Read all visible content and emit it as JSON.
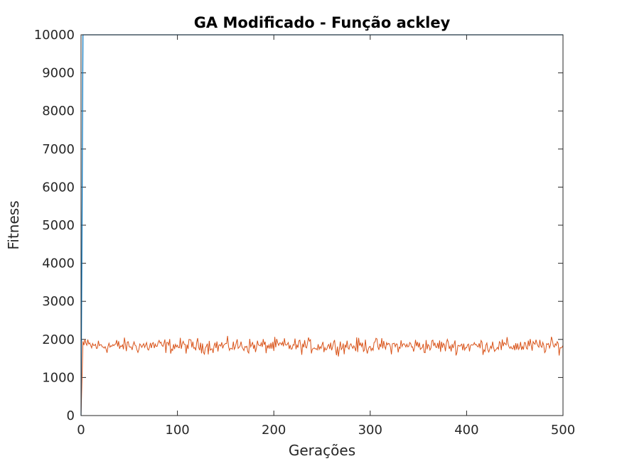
{
  "chart_data": {
    "type": "line",
    "title": "GA Modificado - Função ackley",
    "xlabel": "Gerações",
    "ylabel": "Fitness",
    "xlim": [
      0,
      500
    ],
    "ylim": [
      0,
      10000
    ],
    "xticks": [
      "0",
      "100",
      "200",
      "300",
      "400",
      "500"
    ],
    "yticks": [
      "0",
      "1000",
      "2000",
      "3000",
      "4000",
      "5000",
      "6000",
      "7000",
      "8000",
      "9000",
      "10000"
    ],
    "grid": false,
    "legend": "none",
    "series": [
      {
        "color": "#0072BD",
        "description_points": "best fitness per generation",
        "x": [
          0,
          1,
          2,
          3,
          4,
          500
        ],
        "values": [
          0,
          4800,
          10000,
          10000,
          10000,
          10000
        ]
      },
      {
        "color": "#D95319",
        "x_start": 0,
        "x_end": 500,
        "values_head": [
          0,
          950,
          1950,
          1850,
          2000,
          1900
        ],
        "mean": 1830,
        "spread": 150,
        "samples": 501
      }
    ]
  },
  "colors": {
    "series_blue": "#0072BD",
    "series_orange": "#D95319",
    "axis": "#262626",
    "background": "#ffffff"
  }
}
